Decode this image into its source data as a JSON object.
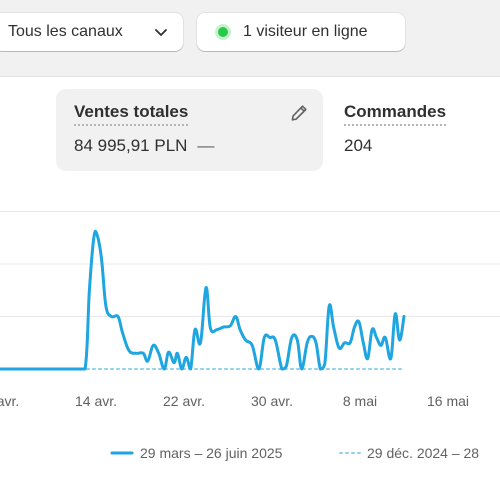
{
  "filters": {
    "channels_label": "Tous les canaux",
    "visitors_label": "1 visiteur en ligne"
  },
  "metrics": {
    "sales": {
      "label": "Ventes totales",
      "value": "84 995,91 PLN",
      "delta": "—"
    },
    "orders": {
      "label": "Commandes",
      "value": "204"
    }
  },
  "colors": {
    "primary_series": "#1fa5e0",
    "comparison_series": "#8fd0ee",
    "online_dot": "#29c94a"
  },
  "chart_data": {
    "type": "line",
    "x_tick_labels": [
      "avr.",
      "14 avr.",
      "22 avr.",
      "30 avr.",
      "8 mai",
      "16 mai"
    ],
    "x_tick_positions": [
      9,
      17,
      25,
      33,
      41,
      49
    ],
    "y_grid_values": [
      0,
      1,
      2,
      3
    ],
    "grid": true,
    "legend_position": "bottom",
    "series": [
      {
        "name": "29 mars – 26 juin 2025",
        "style": "solid",
        "points": [
          [
            8,
            0
          ],
          [
            9,
            0
          ],
          [
            10,
            0
          ],
          [
            11,
            0
          ],
          [
            12,
            0
          ],
          [
            13,
            0
          ],
          [
            14,
            0
          ],
          [
            15,
            0
          ],
          [
            16,
            0
          ],
          [
            16.4,
            1.5
          ],
          [
            16.8,
            2.5
          ],
          [
            17.1,
            2.55
          ],
          [
            17.5,
            2.1
          ],
          [
            17.9,
            1.2
          ],
          [
            18.4,
            1.0
          ],
          [
            19.0,
            1.0
          ],
          [
            19.4,
            0.7
          ],
          [
            20,
            0.35
          ],
          [
            20.7,
            0.3
          ],
          [
            21.3,
            0.3
          ],
          [
            21.7,
            0.15
          ],
          [
            22.2,
            0.45
          ],
          [
            22.7,
            0.3
          ],
          [
            23.2,
            0.0
          ],
          [
            23.6,
            0.32
          ],
          [
            24.1,
            0.12
          ],
          [
            24.4,
            0.3
          ],
          [
            24.8,
            0.0
          ],
          [
            25.2,
            0.22
          ],
          [
            25.6,
            0.0
          ],
          [
            26.0,
            0.75
          ],
          [
            26.5,
            0.5
          ],
          [
            27.0,
            1.55
          ],
          [
            27.4,
            0.78
          ],
          [
            28.0,
            0.75
          ],
          [
            28.6,
            0.8
          ],
          [
            29.2,
            0.82
          ],
          [
            29.7,
            1.0
          ],
          [
            30.1,
            0.75
          ],
          [
            30.6,
            0.55
          ],
          [
            31.2,
            0.45
          ],
          [
            31.8,
            0.0
          ],
          [
            32.3,
            0.6
          ],
          [
            32.8,
            0.6
          ],
          [
            33.3,
            0.55
          ],
          [
            33.9,
            0.0
          ],
          [
            34.3,
            0.05
          ],
          [
            34.8,
            0.6
          ],
          [
            35.3,
            0.55
          ],
          [
            35.7,
            0.0
          ],
          [
            36.2,
            0.5
          ],
          [
            36.6,
            0.62
          ],
          [
            37.0,
            0.5
          ],
          [
            37.4,
            0.0
          ],
          [
            37.8,
            0.1
          ],
          [
            38.2,
            1.2
          ],
          [
            38.6,
            0.8
          ],
          [
            39.1,
            0.4
          ],
          [
            39.6,
            0.5
          ],
          [
            40.1,
            0.5
          ],
          [
            40.5,
            0.8
          ],
          [
            40.9,
            0.9
          ],
          [
            41.3,
            0.5
          ],
          [
            41.7,
            0.2
          ],
          [
            42.1,
            0.75
          ],
          [
            42.5,
            0.6
          ],
          [
            42.9,
            0.45
          ],
          [
            43.3,
            0.6
          ],
          [
            43.8,
            0.2
          ],
          [
            44.2,
            1.05
          ],
          [
            44.6,
            0.55
          ],
          [
            45.0,
            1.0
          ]
        ]
      },
      {
        "name": "29 déc. 2024 – 28",
        "style": "dotted",
        "points": [
          [
            8,
            0
          ],
          [
            45,
            0
          ]
        ]
      }
    ]
  }
}
